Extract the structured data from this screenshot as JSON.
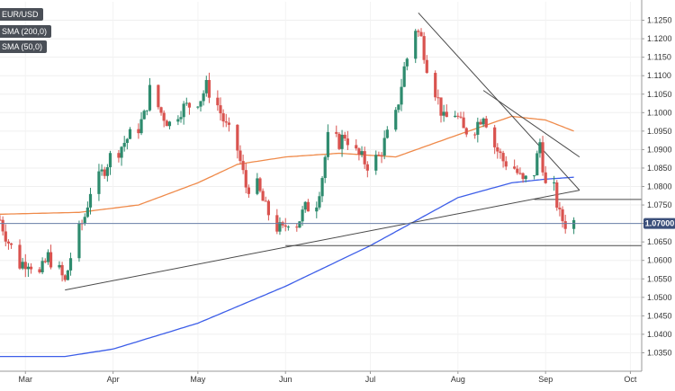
{
  "chart_data": {
    "type": "candlestick",
    "title": "EUR/USD",
    "price_label": "1.07000",
    "y_range": [
      1.03,
      1.13
    ],
    "y_ticks": [
      1.035,
      1.04,
      1.045,
      1.05,
      1.055,
      1.06,
      1.065,
      1.07,
      1.075,
      1.08,
      1.085,
      1.09,
      1.095,
      1.1,
      1.105,
      1.11,
      1.115,
      1.12,
      1.125
    ],
    "x_range": [
      "2023-02-20",
      "2023-10-05"
    ],
    "x_ticks": [
      {
        "label": "Mar",
        "date": "2023-03-01"
      },
      {
        "label": "Apr",
        "date": "2023-04-01"
      },
      {
        "label": "May",
        "date": "2023-05-01"
      },
      {
        "label": "Jun",
        "date": "2023-06-01"
      },
      {
        "label": "Jul",
        "date": "2023-07-01"
      },
      {
        "label": "Aug",
        "date": "2023-08-01"
      },
      {
        "label": "Sep",
        "date": "2023-09-01"
      },
      {
        "label": "Oct",
        "date": "2023-10-01"
      }
    ],
    "colors": {
      "up": "#2e8b6e",
      "down": "#d9534f",
      "sma200": "#3d5ee8",
      "sma50": "#ef8a4a",
      "trend": "#4a4a4a",
      "price_line": "#6a7fa8"
    },
    "candle_anchors": [
      [
        "2023-02-20",
        1.071
      ],
      [
        "2023-02-23",
        1.065
      ],
      [
        "2023-02-27",
        1.059
      ],
      [
        "2023-03-02",
        1.06
      ],
      [
        "2023-03-06",
        1.056
      ],
      [
        "2023-03-09",
        1.061
      ],
      [
        "2023-03-13",
        1.057
      ],
      [
        "2023-03-15",
        1.054
      ],
      [
        "2023-03-17",
        1.061
      ],
      [
        "2023-03-20",
        1.068
      ],
      [
        "2023-03-22",
        1.072
      ],
      [
        "2023-03-24",
        1.079
      ],
      [
        "2023-03-27",
        1.082
      ],
      [
        "2023-03-31",
        1.088
      ],
      [
        "2023-04-03",
        1.09
      ],
      [
        "2023-04-06",
        1.093
      ],
      [
        "2023-04-10",
        1.096
      ],
      [
        "2023-04-12",
        1.099
      ],
      [
        "2023-04-14",
        1.106
      ],
      [
        "2023-04-18",
        1.1
      ],
      [
        "2023-04-21",
        1.097
      ],
      [
        "2023-04-25",
        1.101
      ],
      [
        "2023-04-28",
        1.102
      ],
      [
        "2023-05-02",
        1.104
      ],
      [
        "2023-05-04",
        1.107
      ],
      [
        "2023-05-08",
        1.102
      ],
      [
        "2023-05-11",
        1.096
      ],
      [
        "2023-05-15",
        1.09
      ],
      [
        "2023-05-18",
        1.08
      ],
      [
        "2023-05-22",
        1.08
      ],
      [
        "2023-05-25",
        1.074
      ],
      [
        "2023-05-29",
        1.069
      ],
      [
        "2023-05-31",
        1.068
      ],
      [
        "2023-06-02",
        1.071
      ],
      [
        "2023-06-05",
        1.07
      ],
      [
        "2023-06-08",
        1.074
      ],
      [
        "2023-06-12",
        1.076
      ],
      [
        "2023-06-14",
        1.083
      ],
      [
        "2023-06-16",
        1.093
      ],
      [
        "2023-06-20",
        1.092
      ],
      [
        "2023-06-22",
        1.094
      ],
      [
        "2023-06-26",
        1.089
      ],
      [
        "2023-06-30",
        1.086
      ],
      [
        "2023-07-04",
        1.088
      ],
      [
        "2023-07-06",
        1.092
      ],
      [
        "2023-07-10",
        1.099
      ],
      [
        "2023-07-13",
        1.112
      ],
      [
        "2023-07-17",
        1.123
      ],
      [
        "2023-07-19",
        1.12
      ],
      [
        "2023-07-21",
        1.113
      ],
      [
        "2023-07-24",
        1.106
      ],
      [
        "2023-07-27",
        1.098
      ],
      [
        "2023-07-31",
        1.1
      ],
      [
        "2023-08-03",
        1.095
      ],
      [
        "2023-08-07",
        1.096
      ],
      [
        "2023-08-10",
        1.1
      ],
      [
        "2023-08-14",
        1.091
      ],
      [
        "2023-08-17",
        1.087
      ],
      [
        "2023-08-21",
        1.085
      ],
      [
        "2023-08-24",
        1.081
      ],
      [
        "2023-08-28",
        1.084
      ],
      [
        "2023-08-30",
        1.092
      ],
      [
        "2023-09-01",
        1.08
      ],
      [
        "2023-09-04",
        1.079
      ],
      [
        "2023-09-06",
        1.072
      ],
      [
        "2023-09-08",
        1.07
      ],
      [
        "2023-09-11",
        1.0705
      ]
    ],
    "sma200_anchors": [
      [
        "2023-02-20",
        1.034
      ],
      [
        "2023-03-15",
        1.034
      ],
      [
        "2023-04-01",
        1.036
      ],
      [
        "2023-05-01",
        1.043
      ],
      [
        "2023-06-01",
        1.053
      ],
      [
        "2023-07-01",
        1.064
      ],
      [
        "2023-08-01",
        1.077
      ],
      [
        "2023-08-20",
        1.081
      ],
      [
        "2023-09-01",
        1.082
      ],
      [
        "2023-09-11",
        1.0825
      ]
    ],
    "sma50_anchors": [
      [
        "2023-02-20",
        1.0725
      ],
      [
        "2023-03-20",
        1.073
      ],
      [
        "2023-04-10",
        1.075
      ],
      [
        "2023-05-01",
        1.081
      ],
      [
        "2023-05-15",
        1.086
      ],
      [
        "2023-06-01",
        1.088
      ],
      [
        "2023-06-20",
        1.089
      ],
      [
        "2023-07-10",
        1.088
      ],
      [
        "2023-08-01",
        1.094
      ],
      [
        "2023-08-20",
        1.099
      ],
      [
        "2023-09-01",
        1.098
      ],
      [
        "2023-09-11",
        1.095
      ]
    ],
    "trendlines": [
      {
        "from": [
          "2023-03-15",
          1.052
        ],
        "to": [
          "2023-09-13",
          1.079
        ]
      },
      {
        "from": [
          "2023-07-18",
          1.127
        ],
        "to": [
          "2023-09-13",
          1.079
        ]
      },
      {
        "from": [
          "2023-08-10",
          1.106
        ],
        "to": [
          "2023-09-13",
          1.088
        ]
      },
      {
        "from": [
          "2023-06-01",
          1.064
        ],
        "to": [
          "2023-10-05",
          1.064
        ]
      },
      {
        "from": [
          "2023-08-28",
          1.0765
        ],
        "to": [
          "2023-10-05",
          1.0765
        ]
      }
    ]
  },
  "legend": {
    "pair": "EUR/USD",
    "sma200": "SMA (200,0)",
    "sma50": "SMA (50,0)"
  }
}
